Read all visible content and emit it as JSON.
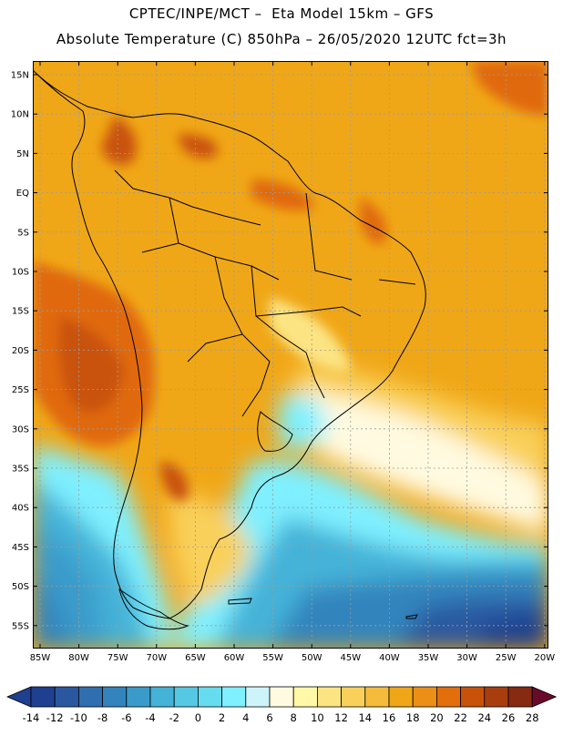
{
  "header": {
    "title_line1": "CPTEC/INPE/MCT –  Eta Model 15km – GFS",
    "title_line2": "Absolute Temperature (C) 850hPa – 26/05/2020 12UTC fct=3h"
  },
  "axes": {
    "lat_labels": [
      "15N",
      "10N",
      "5N",
      "EQ",
      "5S",
      "10S",
      "15S",
      "20S",
      "25S",
      "30S",
      "35S",
      "40S",
      "45S",
      "50S",
      "55S"
    ],
    "lon_labels": [
      "85W",
      "80W",
      "75W",
      "70W",
      "65W",
      "60W",
      "55W",
      "50W",
      "45W",
      "40W",
      "35W",
      "30W",
      "25W",
      "20W"
    ]
  },
  "colorbar": {
    "ticks": [
      "-14",
      "-12",
      "-10",
      "-8",
      "-6",
      "-4",
      "-2",
      "0",
      "2",
      "4",
      "6",
      "8",
      "10",
      "12",
      "14",
      "16",
      "18",
      "20",
      "22",
      "24",
      "26",
      "28"
    ],
    "colors": [
      "#1f3f8f",
      "#2a58a0",
      "#2f6faf",
      "#3384bd",
      "#3a9bcb",
      "#45b2d8",
      "#55c8e4",
      "#66dcf0",
      "#7ff0ff",
      "#cdf4fb",
      "#fffae0",
      "#fff8a6",
      "#fce483",
      "#f9d05a",
      "#f5bc3c",
      "#f0a717",
      "#eb8f16",
      "#e26e0c",
      "#c9520a",
      "#a83e10",
      "#862a12"
    ]
  },
  "map": {
    "colors": {
      "ocean_warm": "#f0a717",
      "land_warm": "#f1a82a",
      "hot": "#e0690e",
      "hotter": "#c9520a",
      "cool_cream": "#fffae0",
      "yellow": "#f9d05a",
      "cyan": "#7ff0ff",
      "teal": "#45b2d8",
      "blue": "#3384bd",
      "deep": "#1f3f8f"
    }
  }
}
